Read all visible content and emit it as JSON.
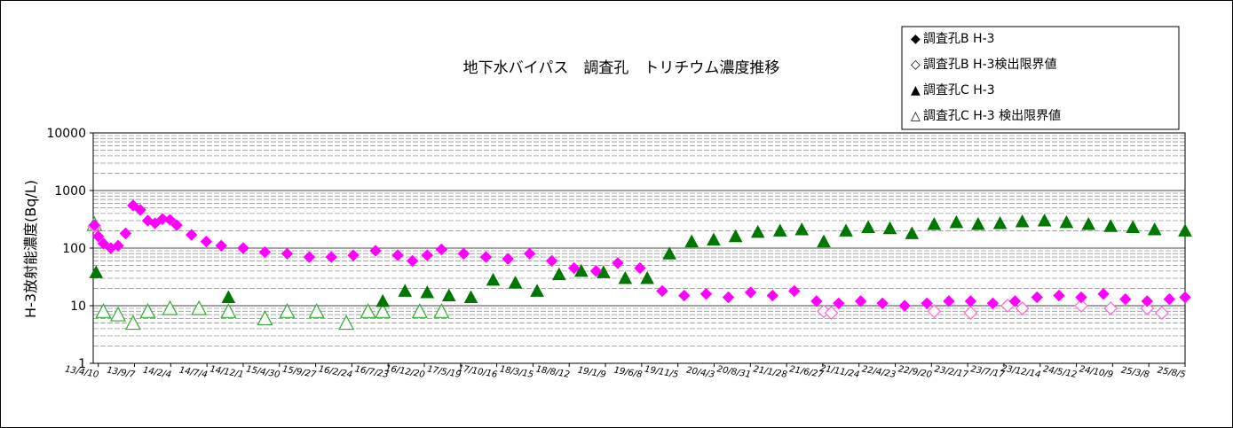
{
  "chart_data": {
    "type": "scatter",
    "title": "地下水バイパス　調査孔　トリチウム濃度推移",
    "xlabel": "",
    "ylabel": "H-3放射能濃度(Bq/L)",
    "y_scale": "log",
    "ylim": [
      1,
      10000
    ],
    "y_ticks": [
      "1",
      "10",
      "100",
      "1000",
      "10000"
    ],
    "x_tick_labels": [
      "13/4/10",
      "13/9/7",
      "14/2/4",
      "14/7/4",
      "14/12/1",
      "15/4/30",
      "15/9/27",
      "16/2/24",
      "16/7/23",
      "16/12/20",
      "17/5/19",
      "17/10/16",
      "18/3/15",
      "18/8/12",
      "19/1/9",
      "19/6/8",
      "19/11/5",
      "20/4/3",
      "20/8/31",
      "21/1/28",
      "21/6/27",
      "21/11/24",
      "22/4/23",
      "22/9/20",
      "23/2/17",
      "23/7/17",
      "23/12/14",
      "24/5/12",
      "24/10/9",
      "25/3/8",
      "25/8/5"
    ],
    "x_tick_dates": [
      "2013-04-10",
      "2013-09-07",
      "2014-02-04",
      "2014-07-04",
      "2014-12-01",
      "2015-04-30",
      "2015-09-27",
      "2016-02-24",
      "2016-07-23",
      "2016-12-20",
      "2017-05-19",
      "2017-10-16",
      "2018-03-15",
      "2018-08-12",
      "2019-01-09",
      "2019-06-08",
      "2019-11-05",
      "2020-04-03",
      "2020-08-31",
      "2021-01-28",
      "2021-06-27",
      "2021-11-24",
      "2022-04-23",
      "2022-09-20",
      "2023-02-17",
      "2023-07-17",
      "2023-12-14",
      "2024-05-12",
      "2024-10-09",
      "2025-03-08",
      "2025-08-05"
    ],
    "legend_position": "top-right",
    "grid": true,
    "series": [
      {
        "name": "◆調査孔B H-3",
        "marker": "diamond-filled",
        "color": "#ff00ff",
        "points": [
          [
            "2013-03-25",
            250
          ],
          [
            "2013-04-10",
            160
          ],
          [
            "2013-05-01",
            120
          ],
          [
            "2013-06-01",
            100
          ],
          [
            "2013-07-01",
            110
          ],
          [
            "2013-08-01",
            180
          ],
          [
            "2013-09-01",
            550
          ],
          [
            "2013-10-01",
            460
          ],
          [
            "2013-11-01",
            300
          ],
          [
            "2013-12-01",
            270
          ],
          [
            "2014-01-01",
            320
          ],
          [
            "2014-02-01",
            310
          ],
          [
            "2014-03-01",
            250
          ],
          [
            "2014-05-01",
            170
          ],
          [
            "2014-07-01",
            130
          ],
          [
            "2014-09-01",
            110
          ],
          [
            "2014-12-01",
            100
          ],
          [
            "2015-03-01",
            85
          ],
          [
            "2015-06-01",
            80
          ],
          [
            "2015-09-01",
            70
          ],
          [
            "2015-12-01",
            70
          ],
          [
            "2016-03-01",
            75
          ],
          [
            "2016-06-01",
            90
          ],
          [
            "2016-09-01",
            75
          ],
          [
            "2016-11-01",
            60
          ],
          [
            "2017-01-01",
            75
          ],
          [
            "2017-03-01",
            95
          ],
          [
            "2017-06-01",
            80
          ],
          [
            "2017-09-01",
            70
          ],
          [
            "2017-12-01",
            65
          ],
          [
            "2018-03-01",
            80
          ],
          [
            "2018-06-01",
            60
          ],
          [
            "2018-09-01",
            45
          ],
          [
            "2018-12-01",
            40
          ],
          [
            "2019-03-01",
            55
          ],
          [
            "2019-06-01",
            45
          ],
          [
            "2019-09-01",
            18
          ],
          [
            "2019-12-01",
            15
          ],
          [
            "2020-03-01",
            16
          ],
          [
            "2020-06-01",
            14
          ],
          [
            "2020-09-01",
            17
          ],
          [
            "2020-12-01",
            15
          ],
          [
            "2021-03-01",
            18
          ],
          [
            "2021-06-01",
            12
          ],
          [
            "2021-09-01",
            11
          ],
          [
            "2021-12-01",
            12
          ],
          [
            "2022-03-01",
            11
          ],
          [
            "2022-06-01",
            10
          ],
          [
            "2022-09-01",
            11
          ],
          [
            "2022-12-01",
            12
          ],
          [
            "2023-03-01",
            12
          ],
          [
            "2023-06-01",
            11
          ],
          [
            "2023-09-01",
            12
          ],
          [
            "2023-12-01",
            14
          ],
          [
            "2024-03-01",
            15
          ],
          [
            "2024-06-01",
            14
          ],
          [
            "2024-09-01",
            16
          ],
          [
            "2024-12-01",
            13
          ],
          [
            "2025-03-01",
            12
          ],
          [
            "2025-06-01",
            13
          ],
          [
            "2025-08-05",
            14
          ]
        ]
      },
      {
        "name": "◇調査孔B H-3検出限界値",
        "marker": "diamond-open",
        "color": "#ff66cc",
        "points": [
          [
            "2013-03-25",
            240
          ],
          [
            "2021-07-01",
            8
          ],
          [
            "2021-08-01",
            7.5
          ],
          [
            "2022-10-01",
            8
          ],
          [
            "2023-03-01",
            7.5
          ],
          [
            "2023-08-01",
            10
          ],
          [
            "2023-10-01",
            9
          ],
          [
            "2024-06-01",
            10
          ],
          [
            "2024-10-01",
            9
          ],
          [
            "2025-03-01",
            9
          ],
          [
            "2025-05-01",
            7.5
          ]
        ]
      },
      {
        "name": "▲調査孔C H-3",
        "marker": "triangle-filled",
        "color": "#007700",
        "points": [
          [
            "2013-04-01",
            38
          ],
          [
            "2014-10-01",
            14
          ],
          [
            "2016-07-01",
            12
          ],
          [
            "2016-10-01",
            18
          ],
          [
            "2017-01-01",
            17
          ],
          [
            "2017-04-01",
            15
          ],
          [
            "2017-07-01",
            14
          ],
          [
            "2017-10-01",
            28
          ],
          [
            "2018-01-01",
            25
          ],
          [
            "2018-04-01",
            18
          ],
          [
            "2018-07-01",
            35
          ],
          [
            "2018-10-01",
            40
          ],
          [
            "2019-01-01",
            38
          ],
          [
            "2019-04-01",
            30
          ],
          [
            "2019-07-01",
            30
          ],
          [
            "2019-10-01",
            80
          ],
          [
            "2020-01-01",
            130
          ],
          [
            "2020-04-01",
            140
          ],
          [
            "2020-07-01",
            160
          ],
          [
            "2020-10-01",
            190
          ],
          [
            "2021-01-01",
            200
          ],
          [
            "2021-04-01",
            210
          ],
          [
            "2021-07-01",
            130
          ],
          [
            "2021-10-01",
            200
          ],
          [
            "2022-01-01",
            230
          ],
          [
            "2022-04-01",
            220
          ],
          [
            "2022-07-01",
            180
          ],
          [
            "2022-10-01",
            260
          ],
          [
            "2023-01-01",
            280
          ],
          [
            "2023-04-01",
            260
          ],
          [
            "2023-07-01",
            270
          ],
          [
            "2023-10-01",
            290
          ],
          [
            "2024-01-01",
            300
          ],
          [
            "2024-04-01",
            280
          ],
          [
            "2024-07-01",
            260
          ],
          [
            "2024-10-01",
            240
          ],
          [
            "2025-01-01",
            230
          ],
          [
            "2025-04-01",
            210
          ],
          [
            "2025-08-05",
            200
          ]
        ]
      },
      {
        "name": "△調査孔C H-3 検出限界値",
        "marker": "triangle-open",
        "color": "#33aa33",
        "points": [
          [
            "2013-03-25",
            260
          ],
          [
            "2013-05-01",
            8
          ],
          [
            "2013-07-01",
            7
          ],
          [
            "2013-09-01",
            5
          ],
          [
            "2013-11-01",
            8
          ],
          [
            "2014-02-01",
            9
          ],
          [
            "2014-06-01",
            9
          ],
          [
            "2014-10-01",
            8
          ],
          [
            "2015-03-01",
            6
          ],
          [
            "2015-06-01",
            8
          ],
          [
            "2015-10-01",
            8
          ],
          [
            "2016-02-01",
            5
          ],
          [
            "2016-05-01",
            8
          ],
          [
            "2016-07-01",
            8
          ],
          [
            "2016-12-01",
            8
          ],
          [
            "2017-03-01",
            8
          ]
        ]
      }
    ]
  },
  "legend": {
    "items": [
      {
        "symbol": "◆",
        "label": "調査孔B H-3",
        "color": "#ff00ff"
      },
      {
        "symbol": "◇",
        "label": "調査孔B H-3検出限界値",
        "color": "#ff66cc"
      },
      {
        "symbol": "▲",
        "label": "調査孔C H-3",
        "color": "#007700"
      },
      {
        "symbol": "△",
        "label": "調査孔C H-3 検出限界値",
        "color": "#007700"
      }
    ]
  }
}
